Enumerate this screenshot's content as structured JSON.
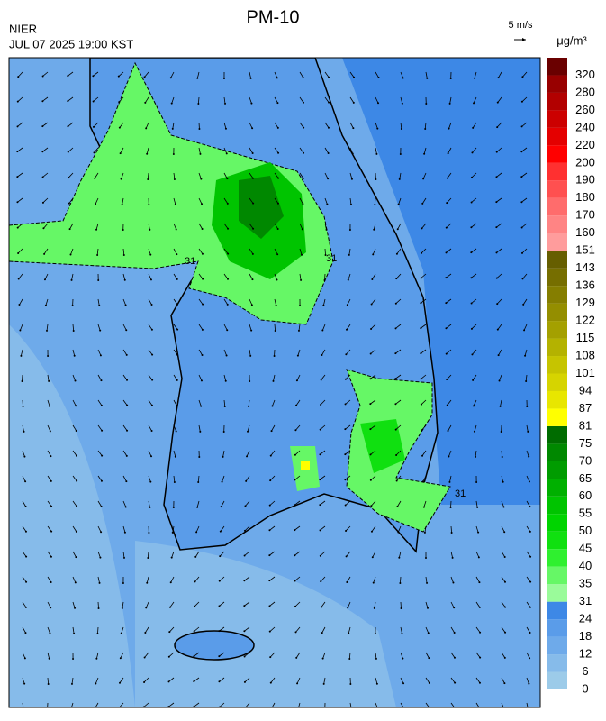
{
  "header": {
    "title": "PM-10",
    "source": "NIER",
    "time": "JUL 07 2025 19:00 KST"
  },
  "wind_scale": {
    "label": "5 m/s"
  },
  "colorbar": {
    "unit": "μg/m³",
    "levels": [
      0,
      6,
      12,
      18,
      24,
      31,
      35,
      40,
      45,
      50,
      55,
      60,
      65,
      70,
      75,
      81,
      87,
      94,
      101,
      108,
      115,
      122,
      129,
      136,
      143,
      151,
      160,
      170,
      180,
      190,
      200,
      220,
      240,
      260,
      280,
      320
    ],
    "colors": [
      "#9ccbe9",
      "#86bbea",
      "#6eaaea",
      "#5a9ce9",
      "#3d88e6",
      "#9afb9a",
      "#66f766",
      "#2ff02f",
      "#10e010",
      "#00d400",
      "#00c400",
      "#00b000",
      "#009c00",
      "#008800",
      "#006c00",
      "#ffff00",
      "#e8e600",
      "#d6d400",
      "#c6c400",
      "#b4b200",
      "#a4a000",
      "#948e00",
      "#857e00",
      "#766e00",
      "#665e00",
      "#ff9c9c",
      "#ff8484",
      "#ff6c6c",
      "#ff5050",
      "#ff3030",
      "#ff0000",
      "#e40000",
      "#cc0000",
      "#b20000",
      "#980000",
      "#6a0000"
    ]
  },
  "map": {
    "contour_labels": [
      31,
      31,
      31
    ]
  }
}
